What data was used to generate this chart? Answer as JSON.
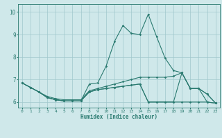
{
  "xlabel": "Humidex (Indice chaleur)",
  "xlim": [
    -0.5,
    23.5
  ],
  "ylim": [
    5.75,
    10.35
  ],
  "yticks": [
    6,
    7,
    8,
    9,
    10
  ],
  "xticks": [
    0,
    1,
    2,
    3,
    4,
    5,
    6,
    7,
    8,
    9,
    10,
    11,
    12,
    13,
    14,
    15,
    16,
    17,
    18,
    19,
    20,
    21,
    22,
    23
  ],
  "bg_color": "#cfe8ea",
  "grid_color": "#a0c8cc",
  "line_color": "#2a7a70",
  "line1_y": [
    6.85,
    6.65,
    6.45,
    6.2,
    6.1,
    6.05,
    6.05,
    6.05,
    6.8,
    6.85,
    7.6,
    8.7,
    9.4,
    9.05,
    9.0,
    9.9,
    8.9,
    7.95,
    7.4,
    7.3,
    6.6,
    6.6,
    6.0,
    5.95
  ],
  "line2_y": [
    6.85,
    6.65,
    6.45,
    6.2,
    6.1,
    6.05,
    6.05,
    6.05,
    6.45,
    6.55,
    6.6,
    6.65,
    6.7,
    6.75,
    6.8,
    6.0,
    6.0,
    6.0,
    6.0,
    6.0,
    6.0,
    6.0,
    6.0,
    5.95
  ],
  "line3_y": [
    6.85,
    6.65,
    6.45,
    6.2,
    6.1,
    6.05,
    6.05,
    6.05,
    6.45,
    6.55,
    6.6,
    6.65,
    6.7,
    6.75,
    6.8,
    6.0,
    6.0,
    6.0,
    6.0,
    7.3,
    6.6,
    6.6,
    6.35,
    5.95
  ],
  "line4_y": [
    6.85,
    6.65,
    6.45,
    6.25,
    6.15,
    6.1,
    6.1,
    6.1,
    6.5,
    6.6,
    6.7,
    6.8,
    6.9,
    7.0,
    7.1,
    7.1,
    7.1,
    7.1,
    7.15,
    7.3,
    6.6,
    6.6,
    6.35,
    5.95
  ]
}
